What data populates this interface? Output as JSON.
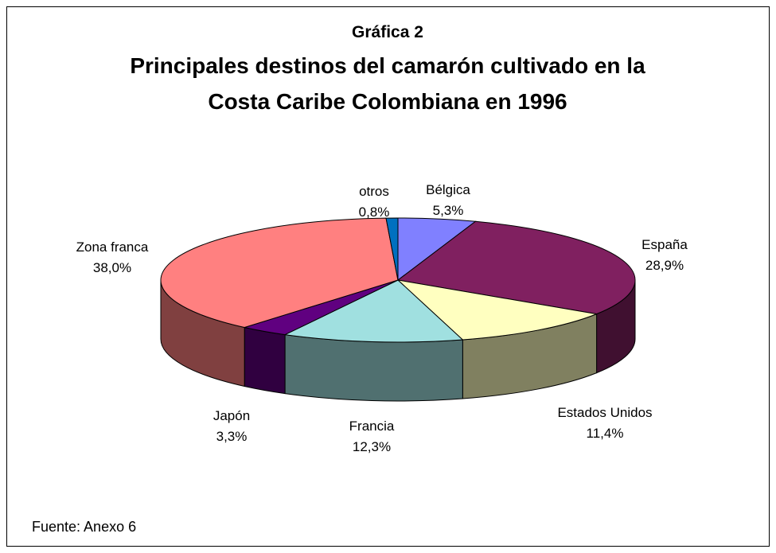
{
  "chart_data": {
    "type": "pie3d",
    "heading": "Gráfica 2",
    "title": [
      "Principales destinos del camarón cultivado en la",
      "Costa Caribe Colombiana en 1996"
    ],
    "categories": [
      "Bélgica",
      "España",
      "Estados Unidos",
      "Francia",
      "Japón",
      "Zona franca",
      "otros"
    ],
    "values": [
      5.3,
      28.9,
      11.4,
      12.3,
      3.3,
      38.0,
      0.8
    ],
    "value_labels": [
      "5,3%",
      "28,9%",
      "11,4%",
      "12,3%",
      "3,3%",
      "38,0%",
      "0,8%"
    ],
    "colors": [
      "#8080ff",
      "#802060",
      "#ffffc0",
      "#a0e0e0",
      "#600080",
      "#ff8080",
      "#0070c0"
    ],
    "source": "Fuente: Anexo 6"
  }
}
